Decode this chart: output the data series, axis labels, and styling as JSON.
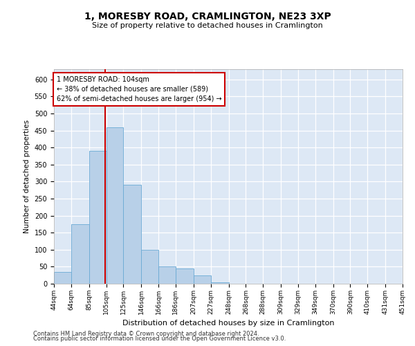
{
  "title1": "1, MORESBY ROAD, CRAMLINGTON, NE23 3XP",
  "title2": "Size of property relative to detached houses in Cramlington",
  "xlabel": "Distribution of detached houses by size in Cramlington",
  "ylabel": "Number of detached properties",
  "footer1": "Contains HM Land Registry data © Crown copyright and database right 2024.",
  "footer2": "Contains public sector information licensed under the Open Government Licence v3.0.",
  "annotation_line1": "1 MORESBY ROAD: 104sqm",
  "annotation_line2": "← 38% of detached houses are smaller (589)",
  "annotation_line3": "62% of semi-detached houses are larger (954) →",
  "property_size": 104,
  "bins": [
    44,
    64,
    85,
    105,
    125,
    146,
    166,
    186,
    207,
    227,
    248,
    268,
    288,
    309,
    329,
    349,
    370,
    390,
    410,
    431,
    451
  ],
  "bar_heights": [
    35,
    175,
    390,
    460,
    290,
    100,
    50,
    45,
    25,
    5,
    1,
    0,
    1,
    0,
    0,
    1,
    0,
    0,
    1,
    0
  ],
  "bar_color": "#b8d0e8",
  "bar_edge_color": "#6aaad4",
  "marker_color": "#cc0000",
  "annotation_box_color": "#cc0000",
  "bg_color": "#dde8f5",
  "ylim": [
    0,
    630
  ],
  "yticks": [
    0,
    50,
    100,
    150,
    200,
    250,
    300,
    350,
    400,
    450,
    500,
    550,
    600
  ]
}
